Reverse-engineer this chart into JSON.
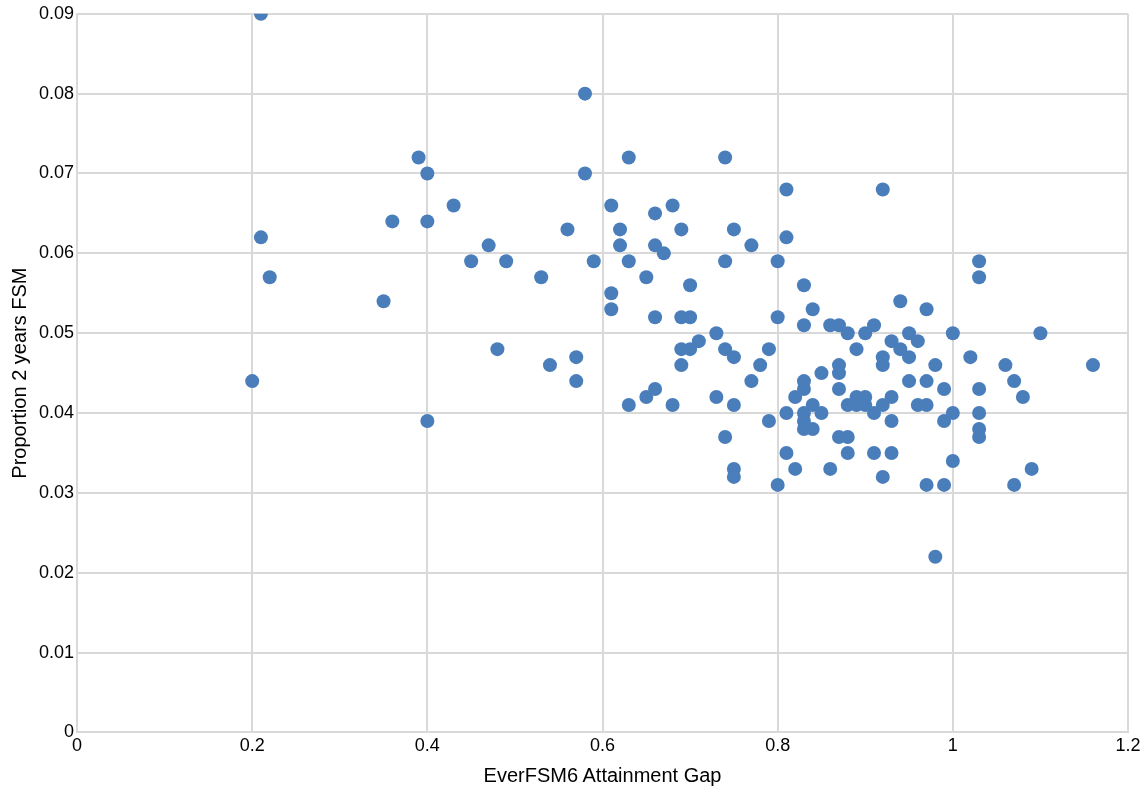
{
  "chart_data": {
    "type": "scatter",
    "xlabel": "EverFSM6 Attainment Gap",
    "ylabel": "Proportion 2 years FSM",
    "x": [
      0.21,
      0.58,
      0.39,
      0.63,
      0.74,
      0.4,
      0.58,
      0.81,
      0.92,
      0.43,
      0.61,
      0.68,
      0.36,
      0.4,
      0.66,
      0.56,
      0.62,
      0.69,
      0.75,
      0.21,
      0.81,
      0.47,
      0.62,
      0.66,
      0.77,
      0.67,
      0.45,
      0.49,
      0.59,
      0.63,
      0.74,
      0.8,
      1.03,
      0.22,
      0.53,
      0.65,
      1.03,
      0.7,
      0.83,
      0.61,
      0.35,
      0.94,
      0.61,
      0.84,
      0.97,
      0.66,
      0.69,
      0.7,
      0.8,
      0.83,
      0.86,
      0.87,
      0.91,
      0.73,
      0.88,
      0.9,
      0.95,
      1.0,
      1.1,
      0.71,
      0.93,
      0.96,
      0.48,
      0.69,
      0.7,
      0.74,
      0.79,
      0.89,
      0.94,
      0.57,
      0.75,
      0.92,
      0.95,
      1.02,
      0.54,
      0.69,
      0.78,
      0.87,
      0.92,
      0.98,
      1.06,
      1.16,
      0.85,
      0.87,
      0.2,
      0.57,
      0.77,
      0.83,
      0.95,
      0.97,
      1.07,
      0.66,
      0.83,
      0.87,
      0.99,
      1.03,
      0.65,
      0.73,
      0.82,
      0.89,
      0.9,
      0.93,
      1.08,
      0.63,
      0.68,
      0.75,
      0.84,
      0.88,
      0.89,
      0.9,
      0.92,
      0.96,
      0.97,
      0.81,
      0.83,
      0.85,
      0.91,
      1.0,
      1.03,
      0.4,
      0.79,
      0.83,
      0.93,
      0.99,
      0.83,
      0.84,
      1.03,
      0.74,
      0.87,
      0.88,
      1.03,
      0.81,
      0.88,
      0.91,
      0.93,
      1.0,
      0.75,
      0.82,
      0.86,
      1.09,
      0.75,
      0.92,
      0.8,
      0.97,
      0.99,
      1.07,
      0.98
    ],
    "values": [
      0.09,
      0.08,
      0.072,
      0.072,
      0.072,
      0.07,
      0.07,
      0.068,
      0.068,
      0.066,
      0.066,
      0.066,
      0.064,
      0.064,
      0.065,
      0.063,
      0.063,
      0.063,
      0.063,
      0.062,
      0.062,
      0.061,
      0.061,
      0.061,
      0.061,
      0.06,
      0.059,
      0.059,
      0.059,
      0.059,
      0.059,
      0.059,
      0.059,
      0.057,
      0.057,
      0.057,
      0.057,
      0.056,
      0.056,
      0.055,
      0.054,
      0.054,
      0.053,
      0.053,
      0.053,
      0.052,
      0.052,
      0.052,
      0.052,
      0.051,
      0.051,
      0.051,
      0.051,
      0.05,
      0.05,
      0.05,
      0.05,
      0.05,
      0.05,
      0.049,
      0.049,
      0.049,
      0.048,
      0.048,
      0.048,
      0.048,
      0.048,
      0.048,
      0.048,
      0.047,
      0.047,
      0.047,
      0.047,
      0.047,
      0.046,
      0.046,
      0.046,
      0.046,
      0.046,
      0.046,
      0.046,
      0.046,
      0.045,
      0.045,
      0.044,
      0.044,
      0.044,
      0.044,
      0.044,
      0.044,
      0.044,
      0.043,
      0.043,
      0.043,
      0.043,
      0.043,
      0.042,
      0.042,
      0.042,
      0.042,
      0.042,
      0.042,
      0.042,
      0.041,
      0.041,
      0.041,
      0.041,
      0.041,
      0.041,
      0.041,
      0.041,
      0.041,
      0.041,
      0.04,
      0.04,
      0.04,
      0.04,
      0.04,
      0.04,
      0.039,
      0.039,
      0.039,
      0.039,
      0.039,
      0.038,
      0.038,
      0.038,
      0.037,
      0.037,
      0.037,
      0.037,
      0.035,
      0.035,
      0.035,
      0.035,
      0.034,
      0.033,
      0.033,
      0.033,
      0.033,
      0.032,
      0.032,
      0.031,
      0.031,
      0.031,
      0.031,
      0.022
    ],
    "color": "#4a7ebb",
    "marker": "circle",
    "xlim": [
      0,
      1.2
    ],
    "xticks": [
      0,
      0.2,
      0.4,
      0.6,
      0.8,
      1,
      1.2
    ],
    "ylim": [
      0,
      0.09
    ],
    "yticks": [
      0,
      0.01,
      0.02,
      0.03,
      0.04,
      0.05,
      0.06,
      0.07,
      0.08,
      0.09
    ],
    "grid": true
  }
}
